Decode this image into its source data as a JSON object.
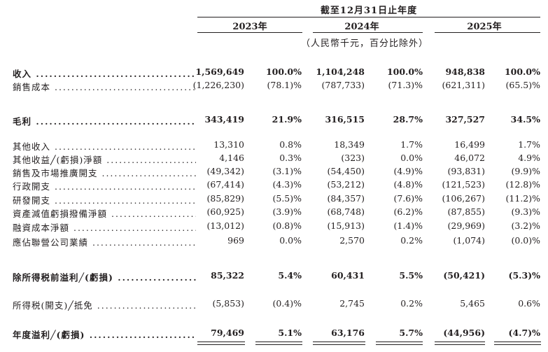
{
  "header": {
    "period": "截至12月31日止年度",
    "years": [
      "2023年",
      "2024年",
      "2025年"
    ],
    "unit": "（人民幣千元，百分比除外）"
  },
  "rows": [
    {
      "label": "收入",
      "bold": true,
      "v": [
        "1,569,649",
        "100.0%",
        "1,104,248",
        "100.0%",
        "948,838",
        "100.0%"
      ]
    },
    {
      "label": "銷售成本",
      "bold": false,
      "v": [
        "(1,226,230)",
        "(78.1)%",
        "(787,733)",
        "(71.3)%",
        "(621,311)",
        "(65.5)%"
      ]
    },
    {
      "label": "毛利",
      "bold": true,
      "v": [
        "343,419",
        "21.9%",
        "316,515",
        "28.7%",
        "327,527",
        "34.5%"
      ]
    },
    {
      "label": "其他收入",
      "bold": false,
      "v": [
        "13,310",
        "0.8%",
        "18,349",
        "1.7%",
        "16,499",
        "1.7%"
      ]
    },
    {
      "label": "其他收益╱(虧損)淨額",
      "bold": false,
      "v": [
        "4,146",
        "0.3%",
        "(323)",
        "0.0%",
        "46,072",
        "4.9%"
      ]
    },
    {
      "label": "銷售及市場推廣開支",
      "bold": false,
      "v": [
        "(49,342)",
        "(3.1)%",
        "(54,450)",
        "(4.9)%",
        "(93,831)",
        "(9.9)%"
      ]
    },
    {
      "label": "行政開支",
      "bold": false,
      "v": [
        "(67,414)",
        "(4.3)%",
        "(53,212)",
        "(4.8)%",
        "(121,523)",
        "(12.8)%"
      ]
    },
    {
      "label": "研發開支",
      "bold": false,
      "v": [
        "(85,829)",
        "(5.5)%",
        "(84,357)",
        "(7.6)%",
        "(106,267)",
        "(11.2)%"
      ]
    },
    {
      "label": "資產減值虧損撥備淨額",
      "bold": false,
      "v": [
        "(60,925)",
        "(3.9)%",
        "(68,748)",
        "(6.2)%",
        "(87,855)",
        "(9.3)%"
      ]
    },
    {
      "label": "融資成本淨額",
      "bold": false,
      "v": [
        "(13,012)",
        "(0.8)%",
        "(15,913)",
        "(1.4)%",
        "(29,969)",
        "(3.2)%"
      ]
    },
    {
      "label": "應佔聯營公司業績",
      "bold": false,
      "v": [
        "969",
        "0.0%",
        "2,570",
        "0.2%",
        "(1,074)",
        "(0.0)%"
      ]
    },
    {
      "label": "除所得税前溢利╱(虧損)",
      "bold": true,
      "v": [
        "85,322",
        "5.4%",
        "60,431",
        "5.5%",
        "(50,421)",
        "(5.3)%"
      ]
    },
    {
      "label": "所得税(開支)╱抵免",
      "bold": false,
      "v": [
        "(5,853)",
        "(0.4)%",
        "2,745",
        "0.2%",
        "5,465",
        "0.6%"
      ]
    },
    {
      "label": "年度溢利╱(虧損)",
      "bold": true,
      "v": [
        "79,469",
        "5.1%",
        "63,176",
        "5.7%",
        "(44,956)",
        "(4.7)%"
      ]
    }
  ]
}
